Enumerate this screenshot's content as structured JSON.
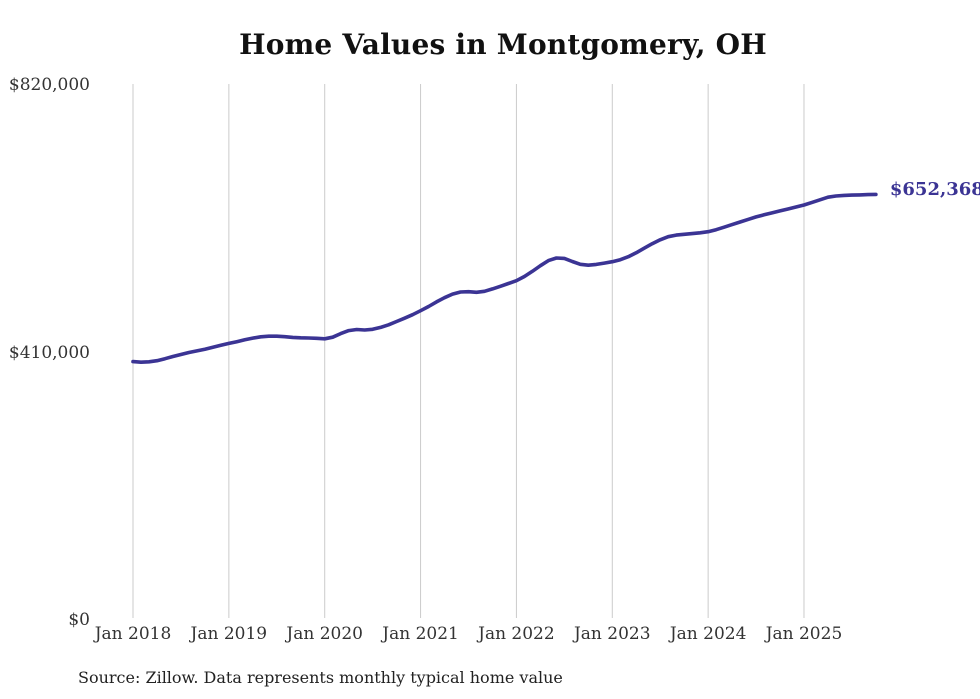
{
  "chart_data": {
    "type": "line",
    "title": "Home Values in Montgomery, OH",
    "xlabel": "",
    "ylabel": "",
    "ylim": [
      0,
      820000
    ],
    "grid": "vertical-only",
    "legend": "none",
    "source": "Source: Zillow. Data represents monthly typical home value",
    "end_label": "$652,368",
    "latest_value": 652368,
    "colors": {
      "line": "#3b3494",
      "end_label": "#3b3494",
      "grid": "#cbcbcb",
      "axis_text": "#333333",
      "title_text": "#111111",
      "source_text": "#222222",
      "background": "#ffffff"
    },
    "y_ticks": [
      {
        "label": "$820,000",
        "value": 820000
      },
      {
        "label": "$410,000",
        "value": 410000
      },
      {
        "label": "$0",
        "value": 0
      }
    ],
    "x_ticks": [
      "Jan 2018",
      "Jan 2019",
      "Jan 2020",
      "Jan 2021",
      "Jan 2022",
      "Jan 2023",
      "Jan 2024",
      "Jan 2025"
    ],
    "series": [
      {
        "name": "Typical home value",
        "start": "Jan 2018",
        "frequency": "monthly",
        "values": [
          396000,
          395200,
          395800,
          397500,
          400500,
          403800,
          407000,
          410000,
          412500,
          415000,
          418000,
          421000,
          424000,
          426500,
          429500,
          432000,
          434000,
          435000,
          435000,
          434200,
          433200,
          432500,
          432200,
          431800,
          431000,
          433500,
          439000,
          443500,
          445200,
          444500,
          445500,
          448500,
          452500,
          457500,
          462500,
          468000,
          474000,
          480500,
          487500,
          494000,
          499500,
          502800,
          503200,
          502200,
          503800,
          507500,
          511500,
          515800,
          520000,
          526500,
          534500,
          543000,
          550800,
          554800,
          554200,
          549500,
          545200,
          543800,
          545000,
          547000,
          549200,
          552200,
          556800,
          562800,
          569800,
          576800,
          582800,
          587500,
          590000,
          591200,
          592200,
          593500,
          595200,
          598200,
          602000,
          606000,
          610000,
          614000,
          617800,
          621000,
          624000,
          627000,
          630000,
          633000,
          636100,
          640000,
          644000,
          648000,
          649800,
          650800,
          651200,
          651600,
          652000,
          652368
        ]
      }
    ]
  }
}
